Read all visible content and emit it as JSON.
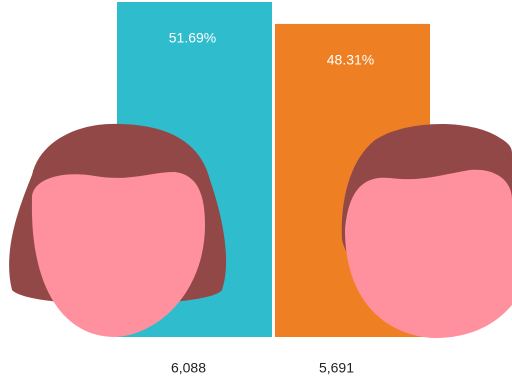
{
  "chart_data": {
    "type": "bar",
    "categories": [
      "6,088",
      "5,691"
    ],
    "values": [
      51.69,
      48.31
    ],
    "value_labels": [
      "51.69%",
      "48.31%"
    ],
    "colors": [
      "#2fbccc",
      "#ee8023"
    ],
    "ylim": [
      0,
      52
    ]
  }
}
